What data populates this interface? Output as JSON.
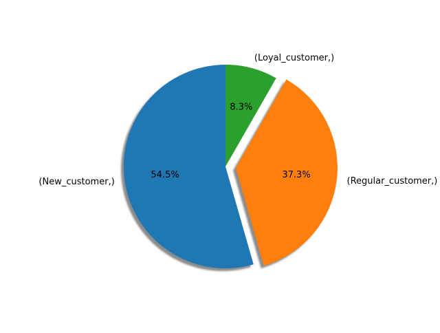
{
  "chart_data": {
    "type": "pie",
    "start_angle_deg": 90,
    "direction": "counterclockwise",
    "shadow": true,
    "slices": [
      {
        "label": "(New_customer,)",
        "percent_label": "54.5%",
        "value": 54.5,
        "color": "#1f77b4",
        "exploded": false
      },
      {
        "label": "(Regular_customer,)",
        "percent_label": "37.3%",
        "value": 37.3,
        "color": "#ff7f0e",
        "exploded": true
      },
      {
        "label": "(Loyal_customer,)",
        "percent_label": "8.3%",
        "value": 8.3,
        "color": "#2ca02c",
        "exploded": false
      }
    ]
  }
}
